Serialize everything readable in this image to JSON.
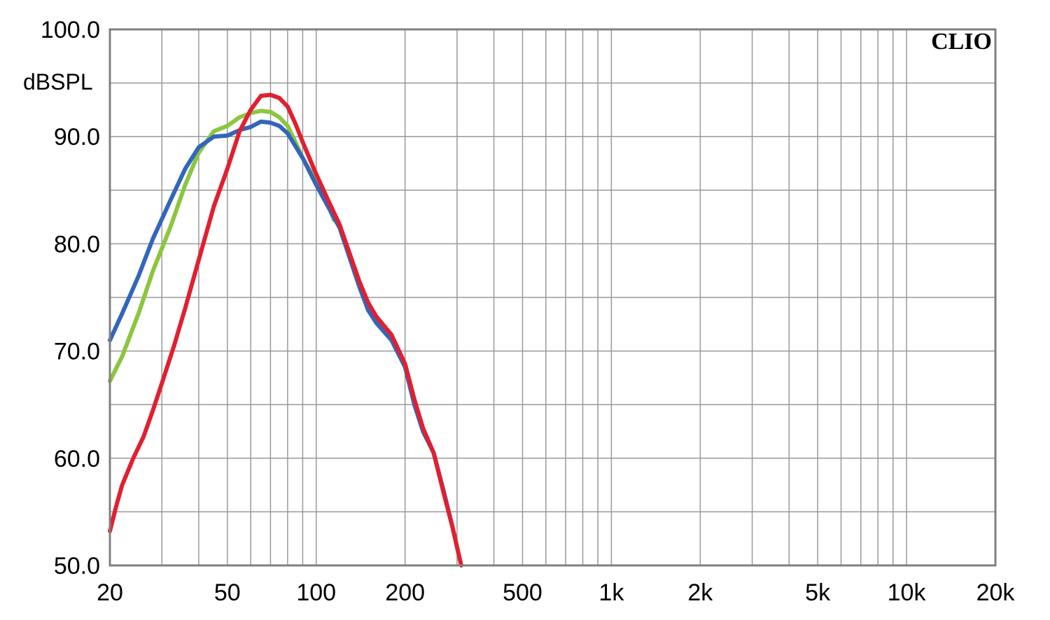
{
  "chart_data": {
    "type": "line",
    "title": "",
    "xlabel": "",
    "ylabel": "dBSPL",
    "brand": "CLIO",
    "x_scale": "log",
    "xlim": [
      20,
      20000
    ],
    "ylim": [
      50,
      100
    ],
    "grid": true,
    "x_major_ticks": [
      {
        "value": 20,
        "label": "20"
      },
      {
        "value": 50,
        "label": "50"
      },
      {
        "value": 100,
        "label": "100"
      },
      {
        "value": 200,
        "label": "200"
      },
      {
        "value": 500,
        "label": "500"
      },
      {
        "value": 1000,
        "label": "1k"
      },
      {
        "value": 2000,
        "label": "2k"
      },
      {
        "value": 5000,
        "label": "5k"
      },
      {
        "value": 10000,
        "label": "10k"
      },
      {
        "value": 20000,
        "label": "20k"
      }
    ],
    "y_major_ticks": [
      {
        "value": 50,
        "label": "50.0"
      },
      {
        "value": 60,
        "label": "60.0"
      },
      {
        "value": 70,
        "label": "70.0"
      },
      {
        "value": 80,
        "label": "80.0"
      },
      {
        "value": 90,
        "label": "90.0"
      },
      {
        "value": 100,
        "label": "100.0"
      }
    ],
    "series": [
      {
        "color": "#8cc63f",
        "points": [
          [
            20,
            67.2
          ],
          [
            22,
            69.5
          ],
          [
            25,
            73.5
          ],
          [
            28,
            77.5
          ],
          [
            32,
            81.5
          ],
          [
            36,
            85.5
          ],
          [
            40,
            88.5
          ],
          [
            45,
            90.5
          ],
          [
            50,
            91.0
          ],
          [
            55,
            91.8
          ],
          [
            60,
            92.2
          ],
          [
            65,
            92.4
          ],
          [
            70,
            92.3
          ],
          [
            75,
            91.8
          ],
          [
            80,
            91.0
          ],
          [
            85,
            89.5
          ],
          [
            90,
            88.0
          ],
          [
            100,
            85.8
          ],
          [
            110,
            83.5
          ],
          [
            115,
            82.2
          ]
        ]
      },
      {
        "color": "#3366bb",
        "points": [
          [
            20,
            71.0
          ],
          [
            22,
            73.5
          ],
          [
            25,
            77.0
          ],
          [
            28,
            80.5
          ],
          [
            32,
            84.0
          ],
          [
            36,
            87.0
          ],
          [
            40,
            89.0
          ],
          [
            45,
            90.0
          ],
          [
            50,
            90.1
          ],
          [
            55,
            90.6
          ],
          [
            60,
            90.9
          ],
          [
            65,
            91.4
          ],
          [
            70,
            91.3
          ],
          [
            75,
            91.0
          ],
          [
            80,
            90.3
          ],
          [
            90,
            88.0
          ],
          [
            100,
            85.5
          ],
          [
            120,
            81.5
          ],
          [
            140,
            76.0
          ],
          [
            150,
            73.8
          ],
          [
            160,
            72.6
          ],
          [
            180,
            71.0
          ],
          [
            200,
            68.5
          ],
          [
            215,
            65.0
          ],
          [
            230,
            62.5
          ],
          [
            250,
            60.5
          ],
          [
            270,
            57.0
          ],
          [
            290,
            53.5
          ],
          [
            310,
            50.0
          ]
        ]
      },
      {
        "color": "#e02030",
        "points": [
          [
            20,
            53.2
          ],
          [
            21,
            55.5
          ],
          [
            22,
            57.5
          ],
          [
            24,
            60.0
          ],
          [
            26,
            62.0
          ],
          [
            28,
            64.5
          ],
          [
            30,
            67.0
          ],
          [
            33,
            70.5
          ],
          [
            36,
            74.0
          ],
          [
            40,
            78.5
          ],
          [
            45,
            83.5
          ],
          [
            50,
            87.0
          ],
          [
            55,
            90.5
          ],
          [
            60,
            92.5
          ],
          [
            65,
            93.8
          ],
          [
            70,
            93.9
          ],
          [
            75,
            93.6
          ],
          [
            80,
            92.8
          ],
          [
            85,
            91.2
          ],
          [
            90,
            89.5
          ],
          [
            100,
            86.5
          ],
          [
            110,
            84.0
          ],
          [
            120,
            81.8
          ],
          [
            140,
            76.5
          ],
          [
            150,
            74.5
          ],
          [
            160,
            73.2
          ],
          [
            180,
            71.5
          ],
          [
            200,
            68.8
          ],
          [
            215,
            65.5
          ],
          [
            230,
            62.8
          ],
          [
            250,
            60.5
          ],
          [
            270,
            56.8
          ],
          [
            290,
            53.5
          ],
          [
            310,
            50.0
          ]
        ]
      }
    ]
  }
}
